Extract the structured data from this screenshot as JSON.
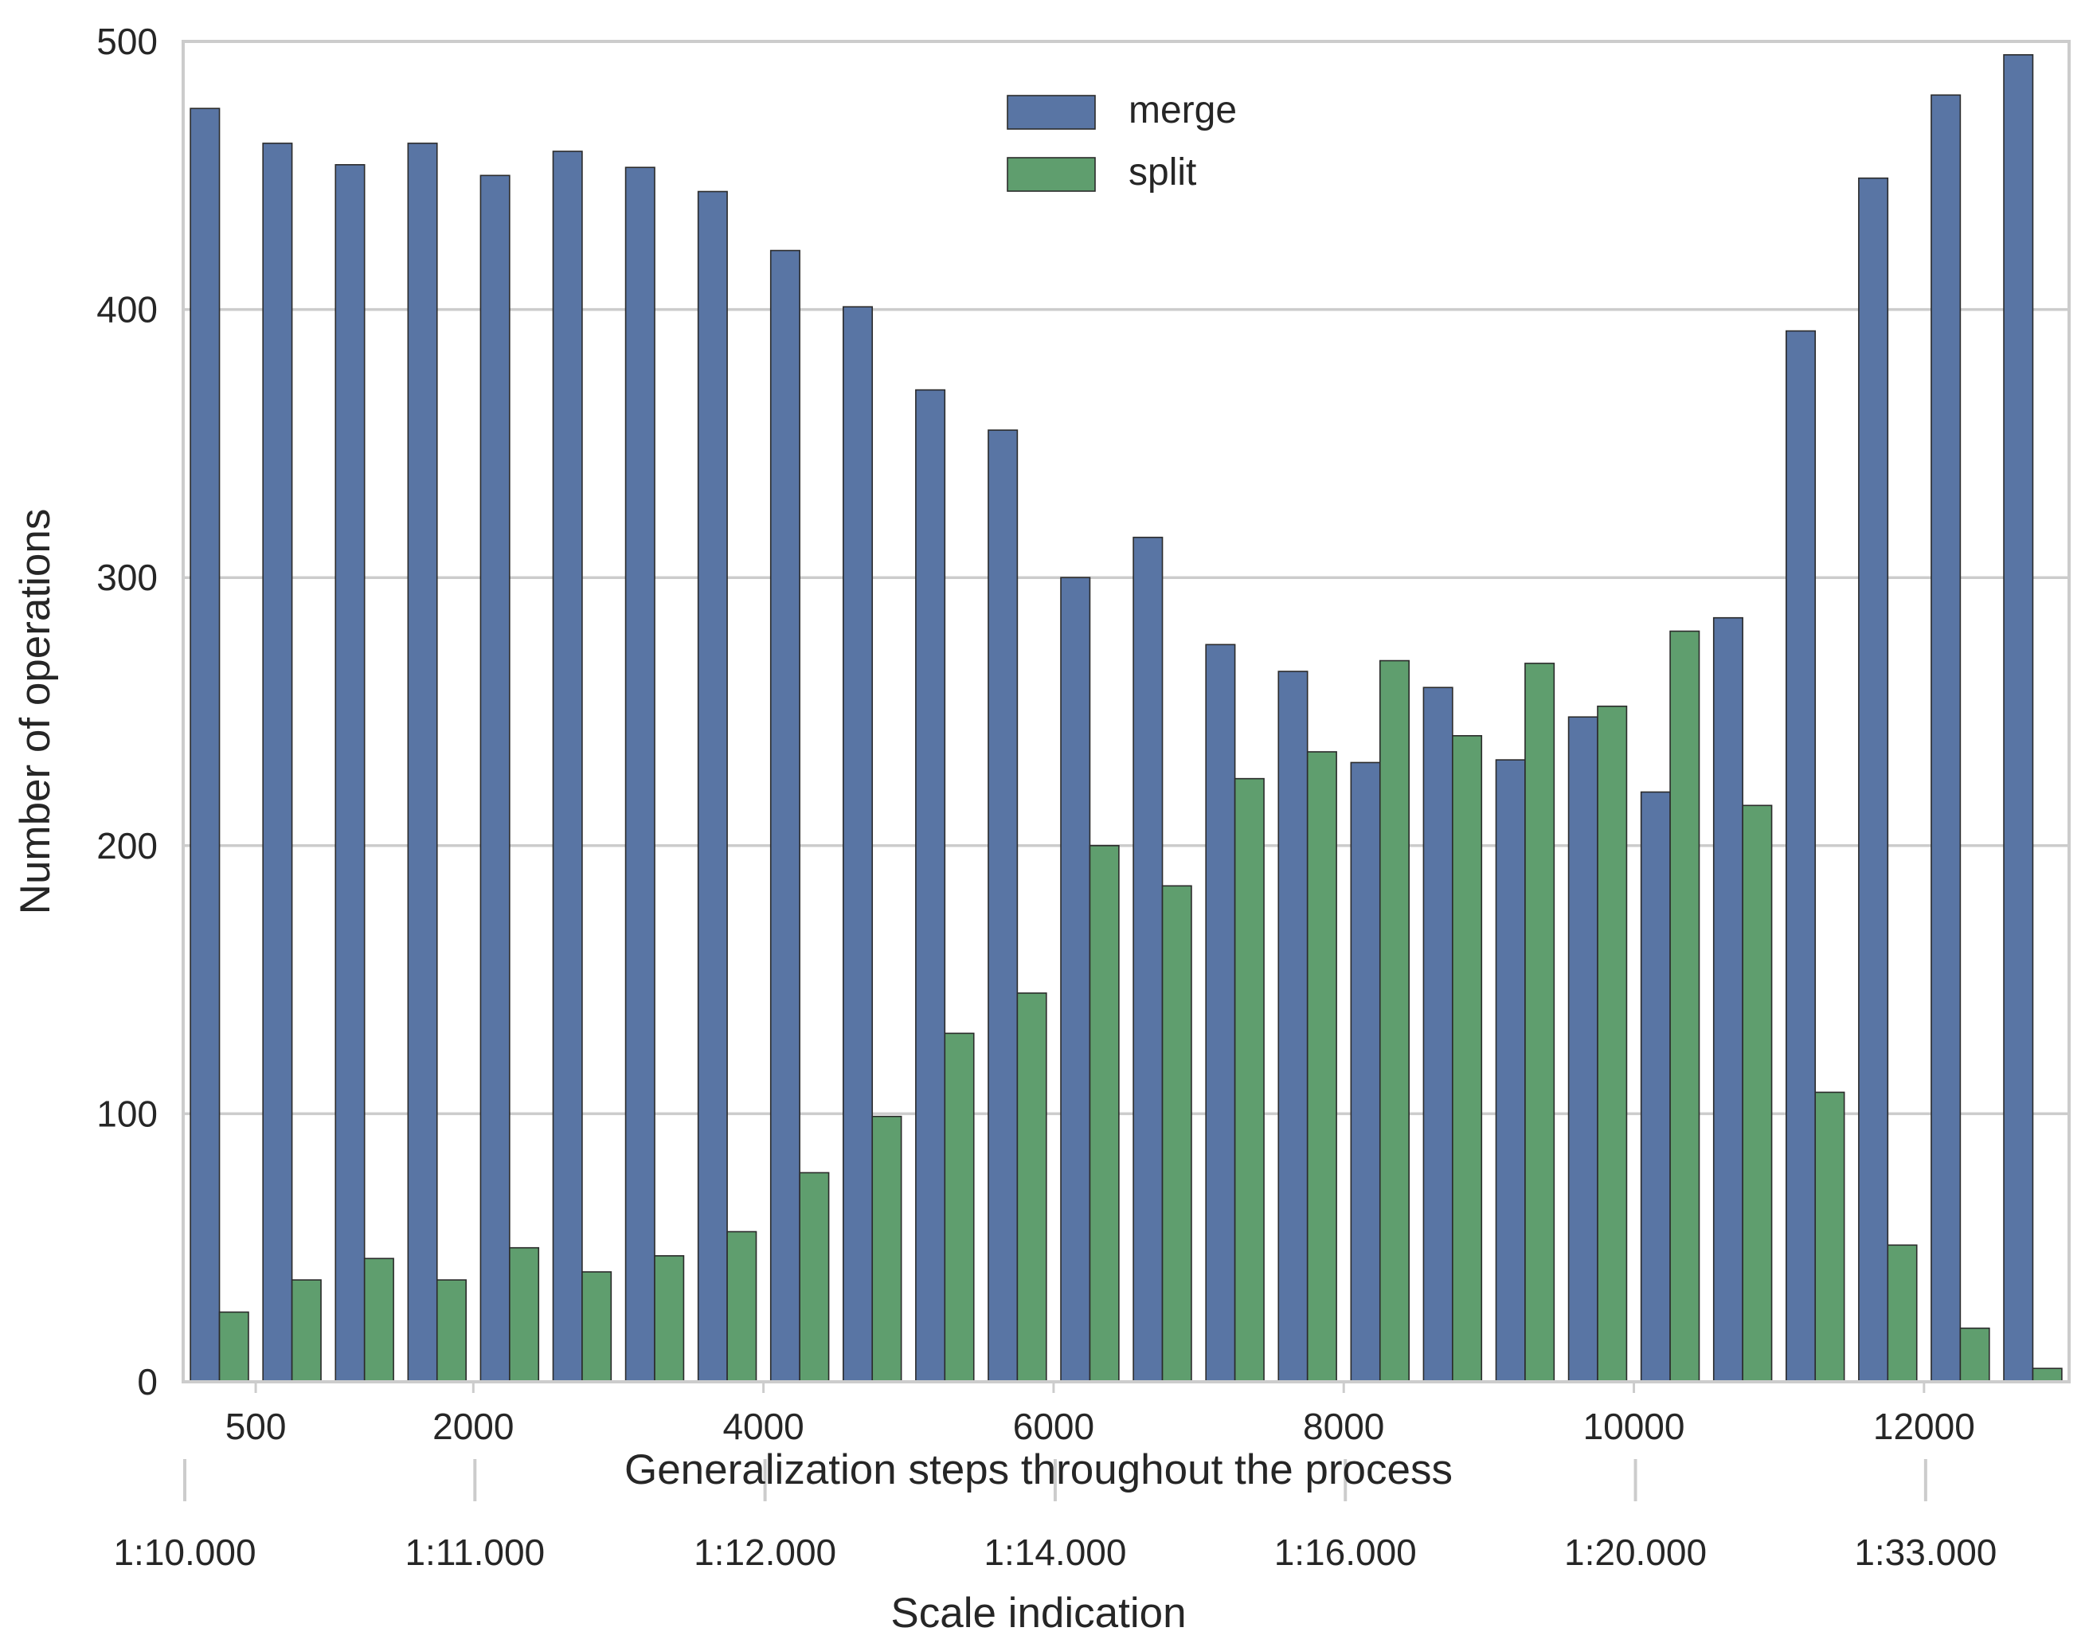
{
  "chart_data": {
    "type": "bar",
    "xlabel": "Generalization steps throughout the process",
    "ylabel": "Number of operations",
    "secondary_xlabel": "Scale indication",
    "ylim": [
      0,
      500
    ],
    "yticks": [
      0,
      100,
      200,
      300,
      400,
      500
    ],
    "xticks": [
      500,
      2000,
      4000,
      6000,
      8000,
      10000,
      12000
    ],
    "xlim": [
      0,
      13000
    ],
    "categories": [
      250,
      750,
      1250,
      1750,
      2250,
      2750,
      3250,
      3750,
      4250,
      4750,
      5250,
      5750,
      6250,
      6750,
      7250,
      7750,
      8250,
      8750,
      9250,
      9750,
      10250,
      10750,
      11250,
      11750,
      12250,
      12750
    ],
    "series": [
      {
        "name": "merge",
        "color": "#5975a4",
        "values": [
          475,
          462,
          454,
          462,
          450,
          459,
          453,
          444,
          422,
          401,
          370,
          355,
          300,
          315,
          275,
          265,
          231,
          259,
          232,
          248,
          220,
          285,
          392,
          449,
          480,
          495
        ]
      },
      {
        "name": "split",
        "color": "#5f9e6e",
        "values": [
          26,
          38,
          46,
          38,
          50,
          41,
          47,
          56,
          78,
          99,
          130,
          145,
          200,
          185,
          225,
          235,
          269,
          241,
          268,
          252,
          280,
          215,
          108,
          51,
          20,
          5
        ]
      }
    ],
    "scale_axis": {
      "labels": [
        "1:10.000",
        "1:11.000",
        "1:12.000",
        "1:14.000",
        "1:16.000",
        "1:20.000",
        "1:33.000"
      ],
      "positions": [
        0,
        2000,
        4000,
        6000,
        8000,
        10000,
        12000
      ]
    },
    "grid": "horizontal",
    "legend_position": "top-center"
  }
}
